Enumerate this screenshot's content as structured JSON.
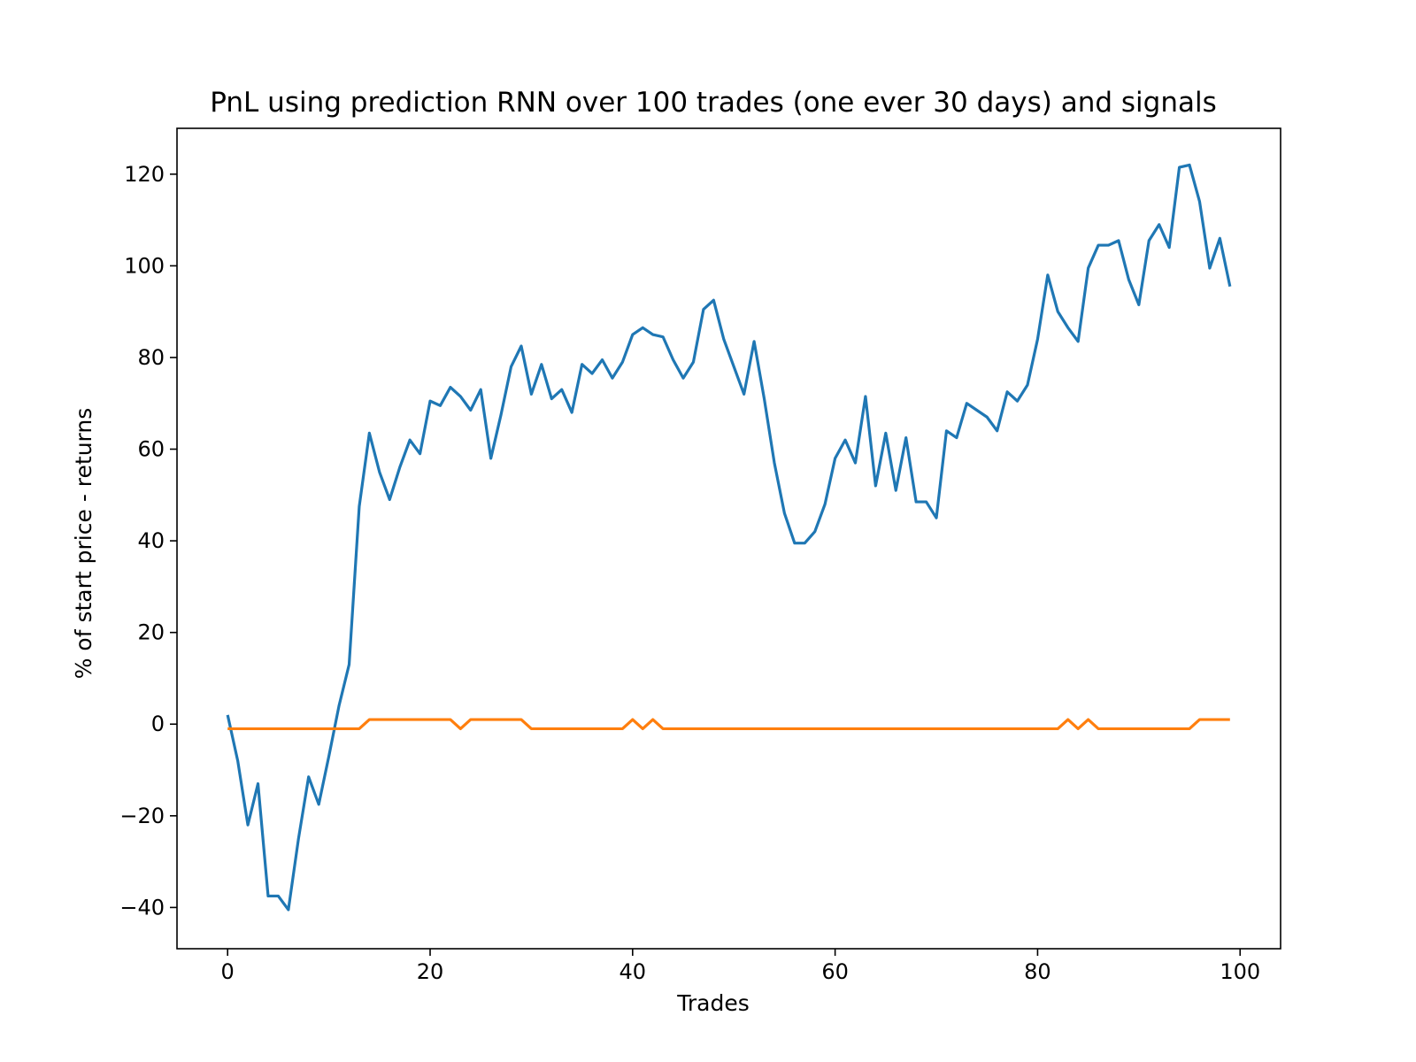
{
  "chart_data": {
    "type": "line",
    "title": "PnL using prediction RNN over 100 trades (one ever 30 days) and signals",
    "xlabel": "Trades",
    "ylabel": "% of start price - returns",
    "xlim": [
      -5,
      104
    ],
    "ylim": [
      -49,
      130
    ],
    "xticks": [
      0,
      20,
      40,
      60,
      80,
      100
    ],
    "yticks": [
      -40,
      -20,
      0,
      20,
      40,
      60,
      80,
      100,
      120
    ],
    "xtick_labels": [
      "0",
      "20",
      "40",
      "60",
      "80",
      "100"
    ],
    "ytick_labels": [
      "−40",
      "−20",
      "0",
      "20",
      "40",
      "60",
      "80",
      "100",
      "120"
    ],
    "grid": false,
    "legend": "none",
    "series": [
      {
        "color": "#1f77b4",
        "x": [
          0,
          1,
          2,
          3,
          4,
          5,
          6,
          7,
          8,
          9,
          10,
          11,
          12,
          13,
          14,
          15,
          16,
          17,
          18,
          19,
          20,
          21,
          22,
          23,
          24,
          25,
          26,
          27,
          28,
          29,
          30,
          31,
          32,
          33,
          34,
          35,
          36,
          37,
          38,
          39,
          40,
          41,
          42,
          43,
          44,
          45,
          46,
          47,
          48,
          49,
          50,
          51,
          52,
          53,
          54,
          55,
          56,
          57,
          58,
          59,
          60,
          61,
          62,
          63,
          64,
          65,
          66,
          67,
          68,
          69,
          70,
          71,
          72,
          73,
          74,
          75,
          76,
          77,
          78,
          79,
          80,
          81,
          82,
          83,
          84,
          85,
          86,
          87,
          88,
          89,
          90,
          91,
          92,
          93,
          94,
          95,
          96,
          97,
          98,
          99
        ],
        "y": [
          2,
          -8,
          -22,
          -13,
          -37.5,
          -37.5,
          -40.5,
          -25,
          -11.5,
          -17.5,
          -7,
          4,
          13,
          47.5,
          63.5,
          55,
          49,
          56,
          62,
          59,
          70.5,
          69.5,
          73.5,
          71.5,
          68.5,
          73,
          58,
          67.5,
          78,
          82.5,
          72,
          78.5,
          71,
          73,
          68,
          78.5,
          76.5,
          79.5,
          75.5,
          79,
          85,
          86.5,
          85,
          84.5,
          79.5,
          75.5,
          79,
          90.5,
          92.5,
          84,
          78,
          72,
          83.5,
          71,
          57,
          46,
          39.5,
          39.5,
          42,
          48,
          58,
          62,
          57,
          71.5,
          52,
          63.5,
          51,
          62.5,
          48.5,
          48.5,
          45,
          64,
          62.5,
          70,
          68.5,
          67,
          64,
          72.5,
          70.5,
          74,
          84,
          98,
          90,
          86.5,
          83.5,
          99.5,
          104.5,
          104.5,
          105.5,
          97,
          91.5,
          105.5,
          109,
          104,
          121.5,
          122,
          114,
          99.5,
          106,
          95.5
        ]
      },
      {
        "color": "#ff7f0e",
        "x": [
          0,
          1,
          2,
          3,
          4,
          5,
          6,
          7,
          8,
          9,
          10,
          11,
          12,
          13,
          14,
          15,
          16,
          17,
          18,
          19,
          20,
          21,
          22,
          23,
          24,
          25,
          26,
          27,
          28,
          29,
          30,
          31,
          32,
          33,
          34,
          35,
          36,
          37,
          38,
          39,
          40,
          41,
          42,
          43,
          44,
          45,
          46,
          47,
          48,
          49,
          50,
          51,
          52,
          53,
          54,
          55,
          56,
          57,
          58,
          59,
          60,
          61,
          62,
          63,
          64,
          65,
          66,
          67,
          68,
          69,
          70,
          71,
          72,
          73,
          74,
          75,
          76,
          77,
          78,
          79,
          80,
          81,
          82,
          83,
          84,
          85,
          86,
          87,
          88,
          89,
          90,
          91,
          92,
          93,
          94,
          95,
          96,
          97,
          98,
          99
        ],
        "y": [
          -1,
          -1,
          -1,
          -1,
          -1,
          -1,
          -1,
          -1,
          -1,
          -1,
          -1,
          -1,
          -1,
          -1,
          1,
          1,
          1,
          1,
          1,
          1,
          1,
          1,
          1,
          -1,
          1,
          1,
          1,
          1,
          1,
          1,
          -1,
          -1,
          -1,
          -1,
          -1,
          -1,
          -1,
          -1,
          -1,
          -1,
          1,
          -1,
          1,
          -1,
          -1,
          -1,
          -1,
          -1,
          -1,
          -1,
          -1,
          -1,
          -1,
          -1,
          -1,
          -1,
          -1,
          -1,
          -1,
          -1,
          -1,
          -1,
          -1,
          -1,
          -1,
          -1,
          -1,
          -1,
          -1,
          -1,
          -1,
          -1,
          -1,
          -1,
          -1,
          -1,
          -1,
          -1,
          -1,
          -1,
          -1,
          -1,
          -1,
          1,
          -1,
          1,
          -1,
          -1,
          -1,
          -1,
          -1,
          -1,
          -1,
          -1,
          -1,
          -1,
          1,
          1,
          1,
          1
        ]
      }
    ]
  }
}
